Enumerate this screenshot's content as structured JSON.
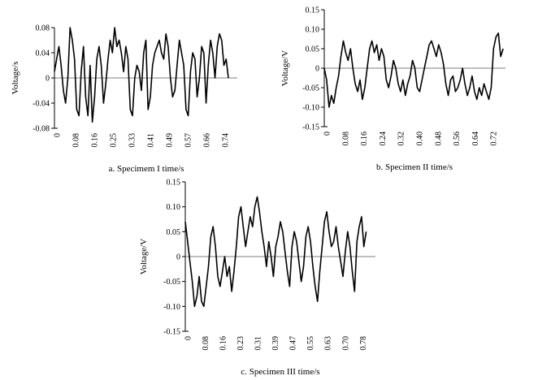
{
  "chart_data": [
    {
      "type": "line",
      "caption": "a. Specimem I time/s",
      "ylabel": "Voltage/s",
      "ylim": [
        -0.08,
        0.08
      ],
      "ytick_labels": [
        "-0.08",
        "-0.04",
        "0",
        "0.04",
        "0.08"
      ],
      "xlim": [
        0,
        0.82
      ],
      "xtick_labels": [
        "0",
        "0.08",
        "0.16",
        "0.25",
        "0.33",
        "0.41",
        "0.49",
        "0.57",
        "0.66",
        "0.74"
      ],
      "zero_line": true,
      "series": [
        {
          "x": [
            0,
            0.01,
            0.02,
            0.03,
            0.04,
            0.05,
            0.06,
            0.07,
            0.08,
            0.09,
            0.1,
            0.11,
            0.12,
            0.13,
            0.14,
            0.15,
            0.16,
            0.17,
            0.18,
            0.19,
            0.2,
            0.21,
            0.22,
            0.23,
            0.24,
            0.25,
            0.26,
            0.27,
            0.28,
            0.29,
            0.3,
            0.31,
            0.32,
            0.33,
            0.34,
            0.35,
            0.36,
            0.37,
            0.38,
            0.39,
            0.4,
            0.41,
            0.42,
            0.43,
            0.44,
            0.45,
            0.46,
            0.47,
            0.48,
            0.49,
            0.5,
            0.51,
            0.52,
            0.53,
            0.54,
            0.55,
            0.56,
            0.57,
            0.58,
            0.59,
            0.6,
            0.61,
            0.62,
            0.63,
            0.64,
            0.65,
            0.66,
            0.67,
            0.68,
            0.69,
            0.7,
            0.71,
            0.72,
            0.73,
            0.74,
            0.75,
            0.76,
            0.77,
            0.78
          ],
          "values": [
            0.01,
            0.03,
            0.05,
            0.02,
            -0.02,
            -0.04,
            0.0,
            0.08,
            0.06,
            0.03,
            -0.05,
            -0.06,
            0.01,
            0.05,
            -0.03,
            -0.06,
            0.02,
            -0.07,
            -0.03,
            0.03,
            0.05,
            0.02,
            -0.04,
            -0.01,
            0.03,
            0.06,
            0.04,
            0.08,
            0.05,
            0.06,
            0.04,
            0.01,
            0.05,
            0.03,
            -0.05,
            -0.06,
            0.0,
            0.02,
            0.01,
            -0.02,
            0.04,
            0.06,
            -0.05,
            -0.03,
            0.02,
            0.04,
            0.05,
            0.06,
            0.04,
            0.03,
            0.07,
            0.05,
            0.0,
            -0.03,
            -0.02,
            0.02,
            0.06,
            0.04,
            0.02,
            -0.05,
            -0.06,
            0.01,
            0.04,
            0.03,
            -0.03,
            0.0,
            0.05,
            0.04,
            -0.04,
            0.02,
            0.06,
            0.04,
            0.0,
            0.05,
            0.07,
            0.06,
            0.02,
            0.03,
            0.0
          ]
        }
      ]
    },
    {
      "type": "line",
      "caption": "b. Specimen II time/s",
      "ylabel": "Voltage/V",
      "ylim": [
        -0.15,
        0.15
      ],
      "ytick_labels": [
        "-0.15",
        "-0.10",
        "-0.05",
        "0",
        "0.05",
        "0.10",
        "0.15"
      ],
      "xlim": [
        0,
        0.76
      ],
      "xtick_labels": [
        "0",
        "0.08",
        "0.16",
        "0.24",
        "0.32",
        "0.40",
        "0.48",
        "0.56",
        "0.64",
        "0.72"
      ],
      "zero_line": true,
      "series": [
        {
          "x": [
            0,
            0.01,
            0.02,
            0.03,
            0.04,
            0.05,
            0.06,
            0.07,
            0.08,
            0.09,
            0.1,
            0.11,
            0.12,
            0.13,
            0.14,
            0.15,
            0.16,
            0.17,
            0.18,
            0.19,
            0.2,
            0.21,
            0.22,
            0.23,
            0.24,
            0.25,
            0.26,
            0.27,
            0.28,
            0.29,
            0.3,
            0.31,
            0.32,
            0.33,
            0.34,
            0.35,
            0.36,
            0.37,
            0.38,
            0.39,
            0.4,
            0.41,
            0.42,
            0.43,
            0.44,
            0.45,
            0.46,
            0.47,
            0.48,
            0.49,
            0.5,
            0.51,
            0.52,
            0.53,
            0.54,
            0.55,
            0.56,
            0.57,
            0.58,
            0.59,
            0.6,
            0.61,
            0.62,
            0.63,
            0.64,
            0.65,
            0.66,
            0.67,
            0.68,
            0.69,
            0.7,
            0.71,
            0.72,
            0.73,
            0.74,
            0.75
          ],
          "values": [
            0.0,
            -0.03,
            -0.1,
            -0.07,
            -0.09,
            -0.05,
            -0.02,
            0.03,
            0.07,
            0.04,
            0.02,
            0.05,
            0.0,
            -0.04,
            -0.06,
            -0.03,
            -0.08,
            -0.05,
            0.0,
            0.05,
            0.07,
            0.04,
            0.06,
            0.02,
            0.05,
            0.03,
            -0.03,
            -0.05,
            -0.02,
            0.02,
            0.0,
            -0.04,
            -0.06,
            -0.03,
            -0.07,
            -0.04,
            -0.02,
            0.02,
            0.0,
            -0.05,
            -0.06,
            -0.03,
            0.0,
            0.03,
            0.06,
            0.07,
            0.05,
            0.03,
            0.06,
            0.04,
            0.01,
            -0.04,
            -0.07,
            -0.03,
            -0.02,
            -0.06,
            -0.05,
            -0.03,
            0.0,
            -0.04,
            -0.07,
            -0.05,
            -0.02,
            -0.06,
            -0.08,
            -0.05,
            -0.07,
            -0.04,
            -0.06,
            -0.08,
            -0.05,
            0.05,
            0.08,
            0.09,
            0.03,
            0.05
          ]
        }
      ]
    },
    {
      "type": "line",
      "caption": "c. Specimen III time/s",
      "ylabel": "Voltage/V",
      "ylim": [
        -0.15,
        0.15
      ],
      "ytick_labels": [
        "-0.15",
        "-0.10",
        "-0.05",
        "0",
        "0.05",
        "0.10",
        "0.15"
      ],
      "xlim": [
        0,
        0.82
      ],
      "xtick_labels": [
        "0",
        "0.08",
        "0.16",
        "0.23",
        "0.31",
        "0.39",
        "0.47",
        "0.55",
        "0.63",
        "0.70",
        "0.78"
      ],
      "zero_line": true,
      "series": [
        {
          "x": [
            0,
            0.01,
            0.02,
            0.03,
            0.04,
            0.05,
            0.06,
            0.07,
            0.08,
            0.09,
            0.1,
            0.11,
            0.12,
            0.13,
            0.14,
            0.15,
            0.16,
            0.17,
            0.18,
            0.19,
            0.2,
            0.21,
            0.22,
            0.23,
            0.24,
            0.25,
            0.26,
            0.27,
            0.28,
            0.29,
            0.3,
            0.31,
            0.32,
            0.33,
            0.34,
            0.35,
            0.36,
            0.37,
            0.38,
            0.39,
            0.4,
            0.41,
            0.42,
            0.43,
            0.44,
            0.45,
            0.46,
            0.47,
            0.48,
            0.49,
            0.5,
            0.51,
            0.52,
            0.53,
            0.54,
            0.55,
            0.56,
            0.57,
            0.58,
            0.59,
            0.6,
            0.61,
            0.62,
            0.63,
            0.64,
            0.65,
            0.66,
            0.67,
            0.68,
            0.69,
            0.7,
            0.71,
            0.72,
            0.73,
            0.74,
            0.75,
            0.76,
            0.77,
            0.78
          ],
          "values": [
            0.07,
            0.03,
            -0.01,
            -0.05,
            -0.1,
            -0.08,
            -0.04,
            -0.09,
            -0.1,
            -0.06,
            -0.02,
            0.04,
            0.06,
            0.02,
            -0.04,
            -0.06,
            -0.03,
            0.0,
            -0.04,
            -0.02,
            -0.07,
            -0.03,
            0.02,
            0.08,
            0.1,
            0.06,
            0.02,
            0.05,
            0.08,
            0.06,
            0.1,
            0.12,
            0.09,
            0.05,
            0.02,
            -0.02,
            0.03,
            0.0,
            -0.04,
            0.02,
            0.04,
            0.07,
            0.05,
            0.01,
            -0.03,
            -0.06,
            0.02,
            0.05,
            0.03,
            -0.01,
            -0.05,
            -0.02,
            0.04,
            0.06,
            0.03,
            -0.02,
            -0.06,
            -0.09,
            -0.03,
            0.02,
            0.07,
            0.09,
            0.05,
            0.02,
            0.03,
            0.06,
            0.02,
            -0.01,
            -0.04,
            0.01,
            0.05,
            0.02,
            -0.03,
            -0.07,
            0.03,
            0.06,
            0.08,
            0.02,
            0.05
          ]
        }
      ]
    }
  ]
}
